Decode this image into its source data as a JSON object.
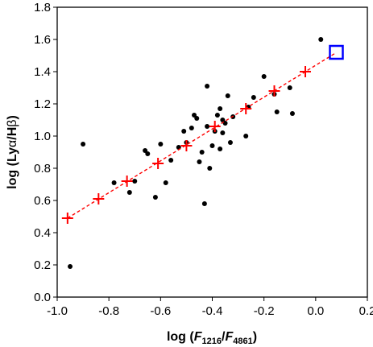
{
  "chart_data": {
    "type": "scatter",
    "title": "",
    "xlabel": {
      "prefix": "log (",
      "f1": "F",
      "sub1": "1216",
      "slash": "/",
      "f2": "F",
      "sub2": "4861",
      "suffix": ")"
    },
    "ylabel": {
      "prefix": "log (Ly",
      "greek1": "α",
      "slash": "/H",
      "greek2": "β",
      "suffix": ")"
    },
    "xlim": [
      -1.0,
      0.2
    ],
    "ylim": [
      0.0,
      1.8
    ],
    "xticks": [
      -1.0,
      -0.8,
      -0.6,
      -0.4,
      -0.2,
      0.0,
      0.2
    ],
    "xtick_labels": [
      "-1.0",
      "-0.8",
      "-0.6",
      "-0.4",
      "-0.2",
      "0.0",
      "0.2"
    ],
    "yticks": [
      0.0,
      0.2,
      0.4,
      0.6,
      0.8,
      1.0,
      1.2,
      1.4,
      1.6,
      1.8
    ],
    "ytick_labels": [
      "0.0",
      "0.2",
      "0.4",
      "0.6",
      "0.8",
      "1.0",
      "1.2",
      "1.4",
      "1.6",
      "1.8"
    ],
    "grid": false,
    "colors": {
      "points": "#000000",
      "fit": "#ff0000",
      "highlight": "#0000ff"
    },
    "series": [
      {
        "kind": "points",
        "marker": "dot",
        "x": [
          -0.95,
          -0.9,
          -0.78,
          -0.72,
          -0.7,
          -0.66,
          -0.65,
          -0.62,
          -0.6,
          -0.58,
          -0.56,
          -0.53,
          -0.51,
          -0.5,
          -0.48,
          -0.47,
          -0.46,
          -0.45,
          -0.44,
          -0.43,
          -0.42,
          -0.42,
          -0.41,
          -0.4,
          -0.39,
          -0.38,
          -0.37,
          -0.37,
          -0.36,
          -0.36,
          -0.35,
          -0.34,
          -0.33,
          -0.32,
          -0.27,
          -0.26,
          -0.24,
          -0.2,
          -0.16,
          -0.15,
          -0.1,
          -0.09,
          0.02
        ],
        "y": [
          0.19,
          0.95,
          0.71,
          0.65,
          0.72,
          0.91,
          0.89,
          0.62,
          0.95,
          0.71,
          0.85,
          0.93,
          1.03,
          0.96,
          1.05,
          1.13,
          1.11,
          0.84,
          0.9,
          0.58,
          1.31,
          1.06,
          0.8,
          0.94,
          1.03,
          1.13,
          1.17,
          0.92,
          1.1,
          1.02,
          1.08,
          1.25,
          0.96,
          1.12,
          1.0,
          1.18,
          1.24,
          1.37,
          1.26,
          1.15,
          1.3,
          1.14,
          1.6
        ]
      },
      {
        "kind": "fit",
        "marker": "plus",
        "line": "dashed",
        "x": [
          -0.96,
          -0.84,
          -0.73,
          -0.61,
          -0.5,
          -0.39,
          -0.27,
          -0.16,
          -0.04
        ],
        "y": [
          0.49,
          0.61,
          0.72,
          0.83,
          0.94,
          1.06,
          1.17,
          1.28,
          1.4
        ]
      },
      {
        "kind": "highlight",
        "marker": "open-square",
        "x": [
          0.08
        ],
        "y": [
          1.52
        ]
      }
    ]
  }
}
